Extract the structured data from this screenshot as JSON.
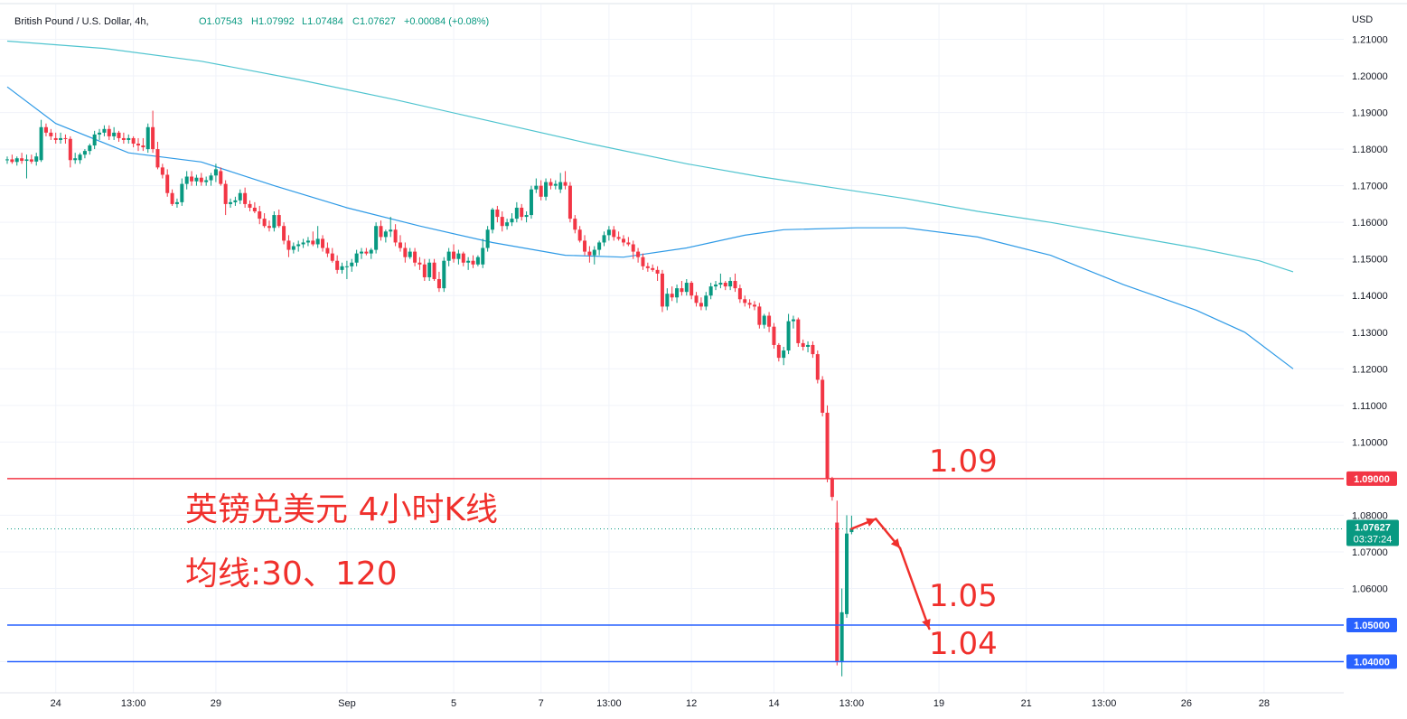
{
  "header": {
    "symbol": "British Pound / U.S. Dollar, 4h,",
    "open": "O1.07543",
    "high": "H1.07992",
    "low": "L1.07484",
    "close": "C1.07627",
    "change": "+0.00084 (+0.08%)"
  },
  "colors": {
    "up": "#089981",
    "down": "#f23645",
    "ma_fast": "#2e9ae6",
    "ma_slow": "#4fc4cf",
    "resistance": "#f23645",
    "support": "#2962ff",
    "annotation": "#f0302c"
  },
  "chart_data": {
    "type": "candlestick",
    "instrument": "British Pound / U.S. Dollar",
    "timeframe": "4h",
    "y_axis_label": "USD",
    "ylim": [
      1.0315,
      1.2195
    ],
    "y_ticks": [
      "1.21000",
      "1.20000",
      "1.19000",
      "1.18000",
      "1.17000",
      "1.16000",
      "1.15000",
      "1.14000",
      "1.13000",
      "1.12000",
      "1.11000",
      "1.10000",
      "1.08000",
      "1.07000",
      "1.06000",
      "1.04000"
    ],
    "x_ticks": [
      "24",
      "13:00",
      "29",
      "Sep",
      "5",
      "7",
      "13:00",
      "12",
      "14",
      "13:00",
      "19",
      "21",
      "13:00",
      "26",
      "28"
    ],
    "x_tick_index": [
      10,
      26,
      43,
      70,
      92,
      110,
      124,
      141,
      158,
      174,
      192,
      210,
      226,
      243,
      259
    ],
    "candles": [
      [
        1.177,
        1.178,
        1.176,
        1.1772
      ],
      [
        1.1772,
        1.1785,
        1.176,
        1.1765
      ],
      [
        1.1765,
        1.178,
        1.1755,
        1.1775
      ],
      [
        1.1775,
        1.179,
        1.176,
        1.1768
      ],
      [
        1.1768,
        1.1785,
        1.172,
        1.1772
      ],
      [
        1.1772,
        1.1785,
        1.176,
        1.1766
      ],
      [
        1.1766,
        1.179,
        1.1755,
        1.178
      ],
      [
        1.177,
        1.188,
        1.1765,
        1.186
      ],
      [
        1.186,
        1.187,
        1.1835,
        1.1845
      ],
      [
        1.1845,
        1.1855,
        1.1825,
        1.1835
      ],
      [
        1.183,
        1.1845,
        1.1815,
        1.1825
      ],
      [
        1.1825,
        1.1845,
        1.1815,
        1.183
      ],
      [
        1.183,
        1.184,
        1.1815,
        1.1828
      ],
      [
        1.1828,
        1.1835,
        1.175,
        1.177
      ],
      [
        1.177,
        1.179,
        1.176,
        1.1775
      ],
      [
        1.177,
        1.179,
        1.176,
        1.1785
      ],
      [
        1.1785,
        1.18,
        1.1775,
        1.1795
      ],
      [
        1.1795,
        1.1815,
        1.1785,
        1.181
      ],
      [
        1.181,
        1.185,
        1.18,
        1.184
      ],
      [
        1.184,
        1.1855,
        1.1825,
        1.1845
      ],
      [
        1.1845,
        1.1865,
        1.1835,
        1.1855
      ],
      [
        1.1855,
        1.1865,
        1.1825,
        1.1835
      ],
      [
        1.1835,
        1.186,
        1.1825,
        1.1845
      ],
      [
        1.1845,
        1.185,
        1.182,
        1.183
      ],
      [
        1.183,
        1.1845,
        1.1815,
        1.1825
      ],
      [
        1.1825,
        1.184,
        1.1815,
        1.183
      ],
      [
        1.183,
        1.1835,
        1.1805,
        1.1815
      ],
      [
        1.1815,
        1.183,
        1.1795,
        1.181
      ],
      [
        1.181,
        1.183,
        1.1795,
        1.1805
      ],
      [
        1.18,
        1.187,
        1.179,
        1.186
      ],
      [
        1.186,
        1.1905,
        1.179,
        1.18
      ],
      [
        1.18,
        1.182,
        1.1745,
        1.175
      ],
      [
        1.175,
        1.176,
        1.172,
        1.173
      ],
      [
        1.173,
        1.1745,
        1.167,
        1.168
      ],
      [
        1.168,
        1.169,
        1.1645,
        1.165
      ],
      [
        1.165,
        1.1665,
        1.164,
        1.1655
      ],
      [
        1.1655,
        1.172,
        1.1645,
        1.1705
      ],
      [
        1.1705,
        1.174,
        1.169,
        1.1725
      ],
      [
        1.1725,
        1.174,
        1.17,
        1.1712
      ],
      [
        1.1712,
        1.173,
        1.17,
        1.1722
      ],
      [
        1.1722,
        1.1735,
        1.17,
        1.171
      ],
      [
        1.171,
        1.1725,
        1.17,
        1.1715
      ],
      [
        1.1715,
        1.1735,
        1.17,
        1.1728
      ],
      [
        1.1728,
        1.176,
        1.171,
        1.1745
      ],
      [
        1.174,
        1.175,
        1.17,
        1.1705
      ],
      [
        1.1705,
        1.1715,
        1.162,
        1.165
      ],
      [
        1.165,
        1.1665,
        1.164,
        1.1655
      ],
      [
        1.1655,
        1.167,
        1.1645,
        1.166
      ],
      [
        1.166,
        1.169,
        1.165,
        1.168
      ],
      [
        1.168,
        1.1695,
        1.164,
        1.165
      ],
      [
        1.165,
        1.166,
        1.163,
        1.164
      ],
      [
        1.164,
        1.1655,
        1.1625,
        1.163
      ],
      [
        1.163,
        1.1645,
        1.1595,
        1.161
      ],
      [
        1.161,
        1.1625,
        1.1585,
        1.159
      ],
      [
        1.159,
        1.1605,
        1.1575,
        1.1585
      ],
      [
        1.1585,
        1.163,
        1.1575,
        1.162
      ],
      [
        1.162,
        1.1635,
        1.1585,
        1.159
      ],
      [
        1.159,
        1.16,
        1.154,
        1.155
      ],
      [
        1.155,
        1.1565,
        1.1505,
        1.1525
      ],
      [
        1.1525,
        1.1545,
        1.1515,
        1.1535
      ],
      [
        1.1535,
        1.155,
        1.152,
        1.154
      ],
      [
        1.154,
        1.1555,
        1.153,
        1.1545
      ],
      [
        1.1545,
        1.156,
        1.1535,
        1.155
      ],
      [
        1.155,
        1.1575,
        1.1535,
        1.154
      ],
      [
        1.154,
        1.159,
        1.153,
        1.1555
      ],
      [
        1.1555,
        1.1565,
        1.152,
        1.153
      ],
      [
        1.153,
        1.1545,
        1.1505,
        1.1515
      ],
      [
        1.1515,
        1.153,
        1.149,
        1.1495
      ],
      [
        1.1495,
        1.151,
        1.146,
        1.147
      ],
      [
        1.147,
        1.149,
        1.146,
        1.148
      ],
      [
        1.148,
        1.1495,
        1.1445,
        1.148
      ],
      [
        1.148,
        1.15,
        1.1465,
        1.149
      ],
      [
        1.149,
        1.1525,
        1.148,
        1.1515
      ],
      [
        1.1515,
        1.153,
        1.15,
        1.152
      ],
      [
        1.152,
        1.153,
        1.151,
        1.1515
      ],
      [
        1.1515,
        1.153,
        1.15,
        1.1525
      ],
      [
        1.1525,
        1.16,
        1.1515,
        1.159
      ],
      [
        1.159,
        1.1605,
        1.155,
        1.156
      ],
      [
        1.156,
        1.158,
        1.1545,
        1.1575
      ],
      [
        1.1575,
        1.1615,
        1.156,
        1.158
      ],
      [
        1.158,
        1.1595,
        1.1535,
        1.1545
      ],
      [
        1.1545,
        1.1565,
        1.152,
        1.153
      ],
      [
        1.153,
        1.1545,
        1.149,
        1.1505
      ],
      [
        1.1505,
        1.153,
        1.15,
        1.152
      ],
      [
        1.152,
        1.153,
        1.148,
        1.149
      ],
      [
        1.149,
        1.1505,
        1.147,
        1.1485
      ],
      [
        1.1485,
        1.15,
        1.144,
        1.145
      ],
      [
        1.145,
        1.15,
        1.144,
        1.149
      ],
      [
        1.149,
        1.15,
        1.144,
        1.1445
      ],
      [
        1.1445,
        1.1465,
        1.141,
        1.142
      ],
      [
        1.142,
        1.1505,
        1.141,
        1.1495
      ],
      [
        1.1495,
        1.153,
        1.148,
        1.152
      ],
      [
        1.152,
        1.154,
        1.149,
        1.15
      ],
      [
        1.15,
        1.1525,
        1.1485,
        1.1515
      ],
      [
        1.1515,
        1.152,
        1.148,
        1.149
      ],
      [
        1.149,
        1.1505,
        1.147,
        1.1495
      ],
      [
        1.1495,
        1.151,
        1.1475,
        1.1485
      ],
      [
        1.1485,
        1.151,
        1.148,
        1.1505
      ],
      [
        1.1485,
        1.1555,
        1.1475,
        1.153
      ],
      [
        1.153,
        1.159,
        1.152,
        1.158
      ],
      [
        1.158,
        1.164,
        1.157,
        1.1635
      ],
      [
        1.1635,
        1.1645,
        1.16,
        1.1615
      ],
      [
        1.1615,
        1.163,
        1.1575,
        1.159
      ],
      [
        1.159,
        1.161,
        1.158,
        1.16
      ],
      [
        1.16,
        1.1625,
        1.159,
        1.161
      ],
      [
        1.161,
        1.1655,
        1.16,
        1.164
      ],
      [
        1.164,
        1.165,
        1.1605,
        1.1615
      ],
      [
        1.1615,
        1.163,
        1.16,
        1.162
      ],
      [
        1.162,
        1.17,
        1.161,
        1.169
      ],
      [
        1.169,
        1.172,
        1.168,
        1.17
      ],
      [
        1.17,
        1.1715,
        1.166,
        1.167
      ],
      [
        1.167,
        1.172,
        1.166,
        1.171
      ],
      [
        1.171,
        1.172,
        1.169,
        1.17
      ],
      [
        1.17,
        1.1715,
        1.169,
        1.1705
      ],
      [
        1.169,
        1.1735,
        1.168,
        1.171
      ],
      [
        1.171,
        1.174,
        1.169,
        1.17
      ],
      [
        1.17,
        1.171,
        1.16,
        1.161
      ],
      [
        1.161,
        1.162,
        1.157,
        1.158
      ],
      [
        1.158,
        1.159,
        1.1545,
        1.155
      ],
      [
        1.155,
        1.1565,
        1.151,
        1.152
      ],
      [
        1.152,
        1.1535,
        1.149,
        1.151
      ],
      [
        1.151,
        1.1535,
        1.1485,
        1.1525
      ],
      [
        1.1525,
        1.155,
        1.151,
        1.1545
      ],
      [
        1.1545,
        1.1575,
        1.1535,
        1.1565
      ],
      [
        1.1565,
        1.159,
        1.155,
        1.158
      ],
      [
        1.158,
        1.159,
        1.155,
        1.156
      ],
      [
        1.156,
        1.1575,
        1.155,
        1.1555
      ],
      [
        1.1555,
        1.1565,
        1.1535,
        1.1545
      ],
      [
        1.1545,
        1.156,
        1.1535,
        1.154
      ],
      [
        1.154,
        1.155,
        1.15,
        1.152
      ],
      [
        1.152,
        1.153,
        1.149,
        1.1505
      ],
      [
        1.1505,
        1.1515,
        1.147,
        1.148
      ],
      [
        1.148,
        1.149,
        1.1465,
        1.1475
      ],
      [
        1.1475,
        1.1485,
        1.1465,
        1.147
      ],
      [
        1.147,
        1.148,
        1.144,
        1.146
      ],
      [
        1.146,
        1.147,
        1.1355,
        1.137
      ],
      [
        1.137,
        1.142,
        1.136,
        1.1405
      ],
      [
        1.1405,
        1.1425,
        1.1385,
        1.1395
      ],
      [
        1.1395,
        1.143,
        1.138,
        1.142
      ],
      [
        1.142,
        1.144,
        1.14,
        1.141
      ],
      [
        1.141,
        1.1445,
        1.14,
        1.1435
      ],
      [
        1.1435,
        1.144,
        1.139,
        1.14
      ],
      [
        1.14,
        1.141,
        1.137,
        1.138
      ],
      [
        1.138,
        1.1395,
        1.136,
        1.137
      ],
      [
        1.137,
        1.141,
        1.136,
        1.14
      ],
      [
        1.14,
        1.1435,
        1.139,
        1.1425
      ],
      [
        1.1425,
        1.144,
        1.1415,
        1.143
      ],
      [
        1.143,
        1.146,
        1.142,
        1.1435
      ],
      [
        1.1435,
        1.144,
        1.1415,
        1.1425
      ],
      [
        1.1425,
        1.145,
        1.1415,
        1.144
      ],
      [
        1.144,
        1.146,
        1.141,
        1.142
      ],
      [
        1.142,
        1.143,
        1.138,
        1.139
      ],
      [
        1.139,
        1.14,
        1.137,
        1.138
      ],
      [
        1.138,
        1.139,
        1.1365,
        1.1375
      ],
      [
        1.1375,
        1.1385,
        1.136,
        1.137
      ],
      [
        1.137,
        1.138,
        1.131,
        1.132
      ],
      [
        1.132,
        1.135,
        1.131,
        1.1345
      ],
      [
        1.1345,
        1.1355,
        1.13,
        1.1315
      ],
      [
        1.1315,
        1.1325,
        1.1255,
        1.1265
      ],
      [
        1.1265,
        1.127,
        1.122,
        1.123
      ],
      [
        1.123,
        1.126,
        1.121,
        1.125
      ],
      [
        1.125,
        1.135,
        1.124,
        1.133
      ],
      [
        1.133,
        1.1345,
        1.131,
        1.1335
      ],
      [
        1.1335,
        1.134,
        1.126,
        1.127
      ],
      [
        1.127,
        1.128,
        1.125,
        1.126
      ],
      [
        1.126,
        1.1275,
        1.1245,
        1.1265
      ],
      [
        1.1265,
        1.1275,
        1.123,
        1.124
      ],
      [
        1.124,
        1.125,
        1.116,
        1.117
      ],
      [
        1.117,
        1.118,
        1.107,
        1.108
      ],
      [
        1.108,
        1.11,
        1.089,
        1.09
      ],
      [
        1.09,
        1.0905,
        1.084,
        1.085
      ],
      [
        1.078,
        1.084,
        1.039,
        1.04
      ],
      [
        1.04,
        1.06,
        1.036,
        1.0535
      ],
      [
        1.053,
        1.08,
        1.052,
        1.075
      ],
      [
        1.0754,
        1.0799,
        1.0748,
        1.0763
      ]
    ],
    "moving_averages": [
      {
        "name": "MA30",
        "points": [
          [
            0,
            1.197
          ],
          [
            10,
            1.187
          ],
          [
            25,
            1.179
          ],
          [
            40,
            1.1765
          ],
          [
            55,
            1.17
          ],
          [
            70,
            1.164
          ],
          [
            85,
            1.159
          ],
          [
            100,
            1.1545
          ],
          [
            115,
            1.151
          ],
          [
            127,
            1.1505
          ],
          [
            140,
            1.153
          ],
          [
            152,
            1.1565
          ],
          [
            160,
            1.158
          ],
          [
            175,
            1.1585
          ],
          [
            185,
            1.1585
          ],
          [
            200,
            1.156
          ],
          [
            215,
            1.151
          ],
          [
            230,
            1.143
          ],
          [
            245,
            1.136
          ],
          [
            255,
            1.13
          ],
          [
            265,
            1.12
          ]
        ]
      },
      {
        "name": "MA120",
        "points": [
          [
            0,
            1.2095
          ],
          [
            20,
            1.2075
          ],
          [
            40,
            1.204
          ],
          [
            60,
            1.199
          ],
          [
            80,
            1.1935
          ],
          [
            100,
            1.1875
          ],
          [
            120,
            1.1815
          ],
          [
            140,
            1.176
          ],
          [
            155,
            1.1725
          ],
          [
            170,
            1.1695
          ],
          [
            185,
            1.1665
          ],
          [
            200,
            1.163
          ],
          [
            215,
            1.16
          ],
          [
            230,
            1.1565
          ],
          [
            245,
            1.153
          ],
          [
            258,
            1.1495
          ],
          [
            265,
            1.1465
          ]
        ]
      }
    ],
    "horizontal_lines": [
      {
        "label": "1.09000",
        "value": 1.09
      },
      {
        "label": "1.05000",
        "value": 1.05
      },
      {
        "label": "1.04000",
        "value": 1.04
      }
    ],
    "last_price": {
      "label": "1.07627",
      "value": 1.07627,
      "countdown": "03:37:24"
    },
    "annotations": {
      "title": "英镑兑美元 4小时K线",
      "ma_text": "均线:30、120",
      "level_109": "1.09",
      "level_105": "1.05",
      "level_104": "1.04"
    },
    "projection": [
      [
        0,
        1.0763
      ],
      [
        5,
        1.079
      ],
      [
        10,
        1.071
      ],
      [
        16,
        1.049
      ]
    ]
  }
}
